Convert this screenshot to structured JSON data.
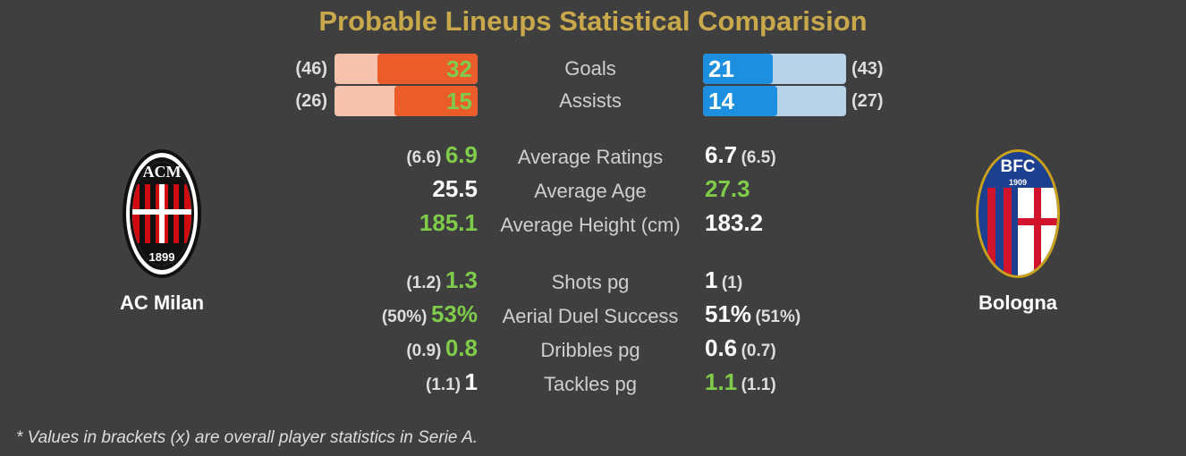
{
  "title": "Probable Lineups Statistical Comparision",
  "teams": {
    "home": {
      "name": "AC Milan",
      "logo_text": "ACM",
      "logo_year": "1899"
    },
    "away": {
      "name": "Bologna",
      "logo_text": "BFC",
      "logo_year": "1909"
    }
  },
  "bars": [
    {
      "label": "Goals",
      "home": "32",
      "home_overall": "(46)",
      "away": "21",
      "away_overall": "(43)",
      "home_fraction": 0.7,
      "away_fraction": 0.49
    },
    {
      "label": "Assists",
      "home": "15",
      "home_overall": "(26)",
      "away": "14",
      "away_overall": "(27)",
      "home_fraction": 0.58,
      "away_fraction": 0.52
    }
  ],
  "stats": [
    {
      "label": "Average Ratings",
      "home": "6.9",
      "home_overall": "(6.6)",
      "away": "6.7",
      "away_overall": "(6.5)",
      "better": "home"
    },
    {
      "label": "Average Age",
      "home": "25.5",
      "home_overall": "",
      "away": "27.3",
      "away_overall": "",
      "better": "away"
    },
    {
      "label": "Average Height (cm)",
      "home": "185.1",
      "home_overall": "",
      "away": "183.2",
      "away_overall": "",
      "better": "home"
    },
    {
      "label": "Shots pg",
      "home": "1.3",
      "home_overall": "(1.2)",
      "away": "1",
      "away_overall": "(1)",
      "better": "home"
    },
    {
      "label": "Aerial Duel Success",
      "home": "53%",
      "home_overall": "(50%)",
      "away": "51%",
      "away_overall": "(51%)",
      "better": "home"
    },
    {
      "label": "Dribbles pg",
      "home": "0.8",
      "home_overall": "(0.9)",
      "away": "0.6",
      "away_overall": "(0.7)",
      "better": "home"
    },
    {
      "label": "Tackles pg",
      "home": "1",
      "home_overall": "(1.1)",
      "away": "1.1",
      "away_overall": "(1.1)",
      "better": "away"
    }
  ],
  "footnote": "* Values in brackets (x) are overall player statistics in Serie A.",
  "colors": {
    "title": "#c9a84c",
    "home_bar": "#ea5c2a",
    "home_bar_light": "#f4c2ad",
    "away_bar": "#1e8fdf",
    "away_bar_light": "#b6d3e8",
    "better_value": "#7fcc4a"
  }
}
